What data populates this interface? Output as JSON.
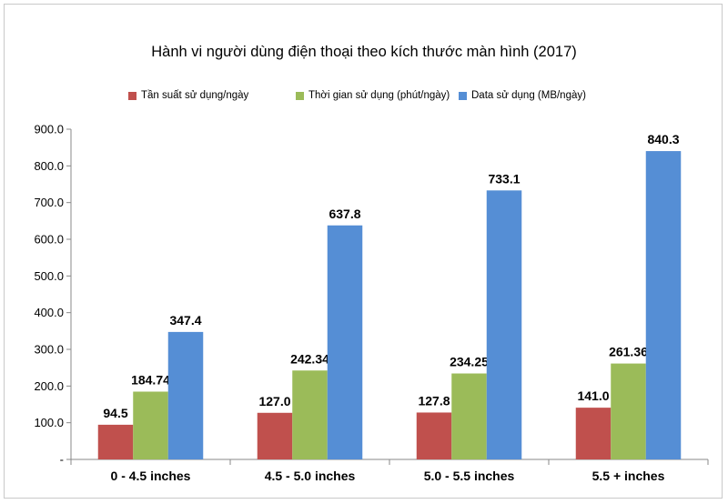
{
  "chart_data": {
    "type": "bar",
    "title": "Hành vi người dùng điện thoại theo kích thước màn hình (2017)",
    "categories": [
      "0 - 4.5 inches",
      "4.5 - 5.0 inches",
      "5.0 - 5.5 inches",
      "5.5 + inches"
    ],
    "series": [
      {
        "name": "Tần suất sử dụng/ngày",
        "color": "#c0504d",
        "values": [
          94.5,
          127.0,
          127.8,
          141.0
        ],
        "labels": [
          "94.5",
          "127.0",
          "127.8",
          "141.0"
        ]
      },
      {
        "name": "Thời gian sử dụng (phút/ngày)",
        "color": "#9bbb59",
        "values": [
          184.74,
          242.34,
          234.25,
          261.36
        ],
        "labels": [
          "184.74",
          "242.34",
          "234.25",
          "261.36"
        ]
      },
      {
        "name": "Data sử dụng (MB/ngày)",
        "color": "#558ed5",
        "values": [
          347.4,
          637.8,
          733.1,
          840.3
        ],
        "labels": [
          "347.4",
          "637.8",
          "733.1",
          "840.3"
        ]
      }
    ],
    "y_ticks": [
      "-",
      "100.0",
      "200.0",
      "300.0",
      "400.0",
      "500.0",
      "600.0",
      "700.0",
      "800.0",
      "900.0"
    ],
    "ylim": [
      0,
      900
    ],
    "legend_position": "top",
    "grid": false
  }
}
